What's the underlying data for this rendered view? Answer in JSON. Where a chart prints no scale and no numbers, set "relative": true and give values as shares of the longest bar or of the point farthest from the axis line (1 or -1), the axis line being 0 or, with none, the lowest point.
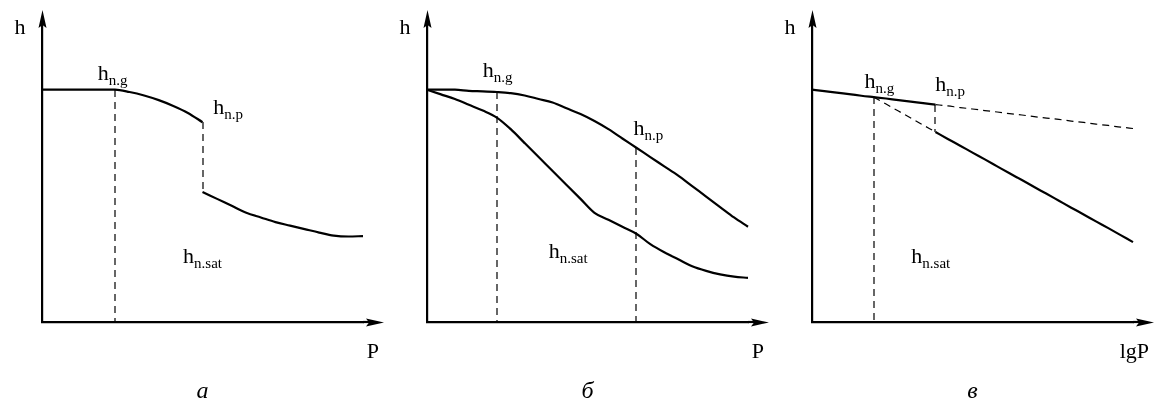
{
  "chart_data": [
    {
      "type": "line",
      "title": "а",
      "xlabel": "P",
      "ylabel": "h",
      "relative": true,
      "marker": "none",
      "categories": [
        null,
        null,
        null,
        null,
        null,
        null,
        null,
        null,
        null,
        null,
        null,
        null,
        null,
        null,
        null,
        null,
        null,
        null,
        null,
        null,
        null,
        null,
        null
      ],
      "series": [
        {
          "color": "#000000",
          "line_style": "solid",
          "values": [
            1,
            1,
            1,
            1,
            1,
            1,
            0.99,
            0.975,
            0.955,
            0.93,
            0.9,
            0.86,
            null,
            null,
            null,
            null,
            null,
            null,
            null,
            null,
            null,
            null,
            null
          ]
        },
        {
          "color": "#000000",
          "line_style": "solid",
          "values": [
            null,
            null,
            null,
            null,
            null,
            null,
            null,
            null,
            null,
            null,
            null,
            0.56,
            0.53,
            0.5,
            0.47,
            0.45,
            0.43,
            0.415,
            0.4,
            0.385,
            0.372,
            0.368,
            0.37
          ]
        }
      ],
      "annotations": [
        "h$_{n.g}$",
        "h$_{n.p}$",
        "h$_{n.sat}$"
      ]
    },
    {
      "type": "line",
      "title": "б",
      "xlabel": "P",
      "ylabel": "h",
      "relative": true,
      "marker": "none",
      "categories": [
        null,
        null,
        null,
        null,
        null,
        null,
        null,
        null,
        null,
        null,
        null,
        null,
        null,
        null,
        null,
        null,
        null,
        null,
        null,
        null,
        null,
        null,
        null,
        null
      ],
      "series": [
        {
          "color": "#000000",
          "line_style": "solid",
          "values": [
            1,
            1,
            1,
            0.995,
            0.993,
            0.99,
            0.985,
            0.975,
            0.96,
            0.945,
            0.92,
            0.895,
            0.865,
            0.83,
            0.79,
            0.75,
            0.71,
            0.67,
            0.63,
            0.585,
            0.54,
            0.495,
            0.45,
            0.41
          ]
        },
        {
          "color": "#000000",
          "line_style": "solid",
          "values": [
            1,
            0.98,
            0.96,
            0.935,
            0.91,
            0.88,
            0.83,
            0.77,
            0.71,
            0.65,
            0.59,
            0.53,
            0.47,
            0.44,
            0.41,
            0.38,
            0.335,
            0.3,
            0.27,
            0.24,
            0.22,
            0.205,
            0.195,
            0.19
          ]
        }
      ],
      "annotations": [
        "h$_{n.g}$",
        "h$_{n.p}$",
        "h$_{n.sat}$"
      ]
    },
    {
      "type": "line",
      "title": "в",
      "xlabel": "lgP",
      "ylabel": "h",
      "relative": true,
      "marker": "none",
      "categories": [
        null,
        null,
        null,
        null,
        null,
        null,
        null,
        null,
        null,
        null,
        null,
        null,
        null,
        null,
        null,
        null,
        null,
        null,
        null,
        null,
        null,
        null,
        null,
        null,
        null,
        null,
        null
      ],
      "series": [
        {
          "color": "#000000",
          "line_style": "solid",
          "values": [
            1,
            0.994,
            0.987,
            0.981,
            0.974,
            0.968,
            0.962,
            0.955,
            0.949,
            0.942,
            0.936,
            null,
            null,
            null,
            null,
            null,
            null,
            null,
            null,
            null,
            null,
            null,
            null,
            null,
            null,
            null,
            null
          ]
        },
        {
          "color": "#000000",
          "line_style": "dashed",
          "values": [
            null,
            null,
            null,
            null,
            null,
            null,
            null,
            null,
            null,
            null,
            0.936,
            0.93,
            0.923,
            0.917,
            0.91,
            0.904,
            0.897,
            0.891,
            0.884,
            0.878,
            0.872,
            0.865,
            0.859,
            0.852,
            0.846,
            0.839,
            0.833
          ]
        },
        {
          "color": "#000000",
          "line_style": "dashed",
          "values": [
            null,
            null,
            null,
            null,
            null,
            0.968,
            0.938,
            0.908,
            0.878,
            0.848,
            0.818,
            null,
            null,
            null,
            null,
            null,
            null,
            null,
            null,
            null,
            null,
            null,
            null,
            null,
            null,
            null,
            null
          ]
        },
        {
          "color": "#000000",
          "line_style": "solid",
          "values": [
            null,
            null,
            null,
            null,
            null,
            null,
            null,
            null,
            null,
            null,
            0.818,
            0.788,
            0.759,
            0.729,
            0.7,
            0.67,
            0.64,
            0.611,
            0.581,
            0.552,
            0.522,
            0.492,
            0.463,
            0.433,
            0.404,
            0.374,
            0.344
          ]
        }
      ],
      "annotations": [
        "h$_{n.g}$",
        "h$_{n.p}$",
        "h$_{n.sat}$"
      ]
    }
  ]
}
